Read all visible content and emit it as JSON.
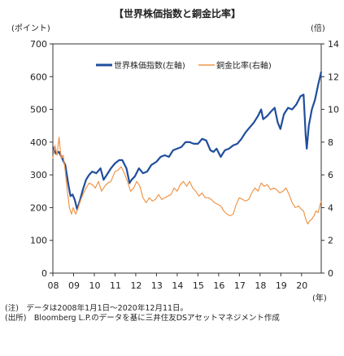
{
  "chart_data": {
    "type": "line",
    "title": "【世界株価指数と銅金比率】",
    "y_left_unit": "(ポイント)",
    "y_right_unit": "(倍)",
    "x_unit": "(年)",
    "x_ticks": [
      "08",
      "09",
      "10",
      "11",
      "12",
      "13",
      "14",
      "15",
      "16",
      "17",
      "18",
      "19",
      "20"
    ],
    "y_left_ticks": [
      "0",
      "100",
      "200",
      "300",
      "400",
      "500",
      "600",
      "700"
    ],
    "y_right_ticks": [
      "0",
      "2",
      "4",
      "6",
      "8",
      "10",
      "12",
      "14"
    ],
    "ylim_left": [
      0,
      700
    ],
    "ylim_right": [
      0,
      14
    ],
    "xlim": [
      2008.0,
      2020.95
    ],
    "grid": false,
    "legend_position": "top-center",
    "series": [
      {
        "name": "世界株価指数(左軸)",
        "axis": "left",
        "color": "#1f4e9c",
        "points": [
          [
            2008.0,
            385
          ],
          [
            2008.15,
            365
          ],
          [
            2008.3,
            370
          ],
          [
            2008.45,
            350
          ],
          [
            2008.6,
            330
          ],
          [
            2008.75,
            270
          ],
          [
            2008.85,
            235
          ],
          [
            2008.95,
            240
          ],
          [
            2009.05,
            225
          ],
          [
            2009.17,
            195
          ],
          [
            2009.3,
            220
          ],
          [
            2009.45,
            255
          ],
          [
            2009.6,
            285
          ],
          [
            2009.75,
            300
          ],
          [
            2009.9,
            310
          ],
          [
            2010.1,
            305
          ],
          [
            2010.3,
            320
          ],
          [
            2010.45,
            285
          ],
          [
            2010.6,
            300
          ],
          [
            2010.8,
            320
          ],
          [
            2011.0,
            335
          ],
          [
            2011.2,
            345
          ],
          [
            2011.35,
            345
          ],
          [
            2011.55,
            320
          ],
          [
            2011.7,
            275
          ],
          [
            2011.8,
            285
          ],
          [
            2011.95,
            295
          ],
          [
            2012.15,
            320
          ],
          [
            2012.35,
            305
          ],
          [
            2012.55,
            310
          ],
          [
            2012.75,
            330
          ],
          [
            2013.0,
            340
          ],
          [
            2013.2,
            355
          ],
          [
            2013.4,
            360
          ],
          [
            2013.6,
            355
          ],
          [
            2013.8,
            375
          ],
          [
            2014.0,
            380
          ],
          [
            2014.2,
            385
          ],
          [
            2014.4,
            400
          ],
          [
            2014.6,
            400
          ],
          [
            2014.8,
            395
          ],
          [
            2015.0,
            395
          ],
          [
            2015.2,
            410
          ],
          [
            2015.4,
            405
          ],
          [
            2015.6,
            375
          ],
          [
            2015.75,
            370
          ],
          [
            2015.9,
            380
          ],
          [
            2016.1,
            355
          ],
          [
            2016.3,
            375
          ],
          [
            2016.5,
            380
          ],
          [
            2016.7,
            390
          ],
          [
            2016.9,
            395
          ],
          [
            2017.1,
            410
          ],
          [
            2017.3,
            430
          ],
          [
            2017.5,
            445
          ],
          [
            2017.7,
            460
          ],
          [
            2017.9,
            480
          ],
          [
            2018.05,
            500
          ],
          [
            2018.15,
            470
          ],
          [
            2018.35,
            480
          ],
          [
            2018.55,
            495
          ],
          [
            2018.7,
            505
          ],
          [
            2018.85,
            460
          ],
          [
            2018.98,
            440
          ],
          [
            2019.15,
            485
          ],
          [
            2019.35,
            505
          ],
          [
            2019.55,
            500
          ],
          [
            2019.75,
            515
          ],
          [
            2019.95,
            540
          ],
          [
            2020.1,
            545
          ],
          [
            2020.2,
            420
          ],
          [
            2020.25,
            380
          ],
          [
            2020.35,
            450
          ],
          [
            2020.5,
            500
          ],
          [
            2020.65,
            530
          ],
          [
            2020.8,
            575
          ],
          [
            2020.95,
            615
          ]
        ]
      },
      {
        "name": "銅金比率(右軸)",
        "axis": "right",
        "color": "#f0964a",
        "points": [
          [
            2008.0,
            7.0
          ],
          [
            2008.1,
            7.8
          ],
          [
            2008.2,
            7.2
          ],
          [
            2008.3,
            8.3
          ],
          [
            2008.4,
            7.0
          ],
          [
            2008.5,
            7.2
          ],
          [
            2008.6,
            6.2
          ],
          [
            2008.7,
            5.0
          ],
          [
            2008.8,
            4.0
          ],
          [
            2008.9,
            3.6
          ],
          [
            2008.98,
            4.0
          ],
          [
            2009.1,
            3.6
          ],
          [
            2009.2,
            3.9
          ],
          [
            2009.3,
            4.3
          ],
          [
            2009.45,
            4.8
          ],
          [
            2009.6,
            5.2
          ],
          [
            2009.75,
            5.5
          ],
          [
            2009.9,
            5.4
          ],
          [
            2010.05,
            5.2
          ],
          [
            2010.2,
            5.6
          ],
          [
            2010.35,
            5.0
          ],
          [
            2010.5,
            5.3
          ],
          [
            2010.65,
            5.5
          ],
          [
            2010.8,
            5.6
          ],
          [
            2011.0,
            6.2
          ],
          [
            2011.15,
            6.3
          ],
          [
            2011.3,
            6.5
          ],
          [
            2011.45,
            6.1
          ],
          [
            2011.6,
            5.6
          ],
          [
            2011.75,
            5.0
          ],
          [
            2011.9,
            5.2
          ],
          [
            2012.05,
            5.6
          ],
          [
            2012.2,
            5.3
          ],
          [
            2012.35,
            4.6
          ],
          [
            2012.5,
            4.3
          ],
          [
            2012.65,
            4.6
          ],
          [
            2012.8,
            4.4
          ],
          [
            2012.95,
            4.5
          ],
          [
            2013.1,
            4.8
          ],
          [
            2013.25,
            4.5
          ],
          [
            2013.4,
            4.6
          ],
          [
            2013.55,
            4.7
          ],
          [
            2013.7,
            4.8
          ],
          [
            2013.85,
            5.2
          ],
          [
            2014.0,
            5.0
          ],
          [
            2014.15,
            5.4
          ],
          [
            2014.3,
            5.6
          ],
          [
            2014.45,
            5.3
          ],
          [
            2014.6,
            5.6
          ],
          [
            2014.75,
            5.2
          ],
          [
            2014.9,
            5.0
          ],
          [
            2015.05,
            4.7
          ],
          [
            2015.2,
            4.9
          ],
          [
            2015.35,
            4.6
          ],
          [
            2015.5,
            4.6
          ],
          [
            2015.65,
            4.5
          ],
          [
            2015.8,
            4.3
          ],
          [
            2015.95,
            4.2
          ],
          [
            2016.1,
            4.1
          ],
          [
            2016.25,
            3.8
          ],
          [
            2016.4,
            3.6
          ],
          [
            2016.55,
            3.5
          ],
          [
            2016.7,
            3.6
          ],
          [
            2016.85,
            4.2
          ],
          [
            2017.0,
            4.6
          ],
          [
            2017.15,
            4.5
          ],
          [
            2017.3,
            4.4
          ],
          [
            2017.45,
            4.5
          ],
          [
            2017.6,
            4.9
          ],
          [
            2017.75,
            5.2
          ],
          [
            2017.9,
            5.0
          ],
          [
            2018.05,
            5.5
          ],
          [
            2018.2,
            5.3
          ],
          [
            2018.35,
            5.4
          ],
          [
            2018.5,
            5.1
          ],
          [
            2018.65,
            5.2
          ],
          [
            2018.8,
            5.1
          ],
          [
            2018.95,
            4.9
          ],
          [
            2019.1,
            5.0
          ],
          [
            2019.25,
            5.2
          ],
          [
            2019.4,
            4.8
          ],
          [
            2019.55,
            4.3
          ],
          [
            2019.7,
            4.0
          ],
          [
            2019.85,
            4.1
          ],
          [
            2019.98,
            3.9
          ],
          [
            2020.1,
            3.8
          ],
          [
            2020.2,
            3.3
          ],
          [
            2020.3,
            3.0
          ],
          [
            2020.4,
            3.2
          ],
          [
            2020.5,
            3.3
          ],
          [
            2020.6,
            3.5
          ],
          [
            2020.7,
            3.8
          ],
          [
            2020.8,
            3.7
          ],
          [
            2020.9,
            4.2
          ],
          [
            2020.95,
            4.4
          ]
        ]
      }
    ]
  },
  "notes": {
    "line1": "(注)　データは2008年1月1日～2020年12月11日。",
    "line2": "(出所)　Bloomberg L.P.のデータを基に三井住友DSアセットマネジメント作成"
  }
}
